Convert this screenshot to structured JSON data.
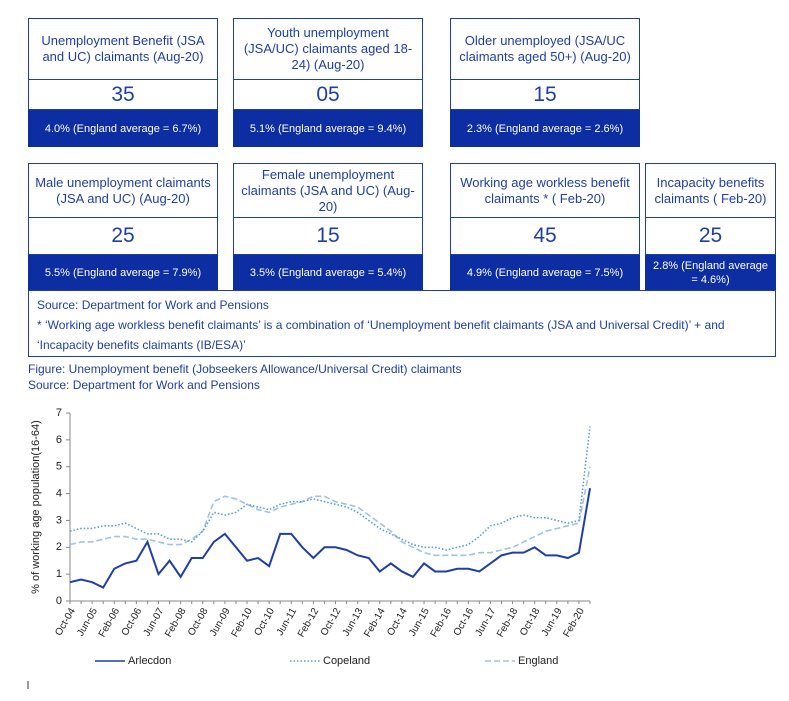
{
  "cards": [
    {
      "title": "Unemployment Benefit (JSA and UC) claimants (Aug-20)",
      "value": "35",
      "note": "4.0% (England average = 6.7%)"
    },
    {
      "title": "Youth unemployment (JSA/UC) claimants aged 18-24) (Aug-20)",
      "value": "05",
      "note": "5.1% (England average = 9.4%)"
    },
    {
      "title": "Older unemployed (JSA/UC claimants aged 50+) (Aug-20)",
      "value": "15",
      "note": "2.3% (England average = 2.6%)"
    },
    {
      "title": "Male unemployment claimants (JSA and UC) (Aug-20)",
      "value": "25",
      "note": "5.5% (England average = 7.9%)"
    },
    {
      "title": "Female unemployment claimants (JSA and UC) (Aug-20)",
      "value": "15",
      "note": "3.5% (England average = 5.4%)"
    },
    {
      "title": "Working age workless benefit claimants * ( Feb-20)",
      "value": "45",
      "note": "4.9% (England average = 7.5%)"
    },
    {
      "title": "Incapacity benefits claimants ( Feb-20)",
      "value": "25",
      "note": "2.8% (England average = 4.6%)"
    }
  ],
  "source_box": {
    "source": "Source: Department for Work and Pensions",
    "footnote": "*  ‘Working age workless benefit claimants’  is a combination of  ‘Unemployment benefit claimants (JSA and Universal Credit)’ + and  ‘Incapacity benefits claimants (IB/ESA)’"
  },
  "figure": {
    "caption": "Figure:  Unemployment benefit (Jobseekers Allowance/Universal Credit) claimants",
    "source": "Source:  Department for Work and Pensions"
  },
  "chart_data": {
    "type": "line",
    "ylabel": "% of working age population(16-64)",
    "categories": [
      "Oct-04",
      null,
      "Jun-05",
      null,
      "Feb-06",
      null,
      "Oct-06",
      null,
      "Jun-07",
      null,
      "Feb-08",
      null,
      "Oct-08",
      null,
      "Jun-09",
      null,
      "Feb-10",
      null,
      "Oct-10",
      null,
      "Jun-11",
      null,
      "Feb-12",
      null,
      "Oct-12",
      null,
      "Jun-13",
      null,
      "Feb-14",
      null,
      "Oct-14",
      null,
      "Jun-15",
      null,
      "Feb-16",
      null,
      "Oct-16",
      null,
      "Jun-17",
      null,
      "Feb-18",
      null,
      "Oct-18",
      null,
      "Jun-19",
      null,
      "Feb-20",
      null
    ],
    "series": [
      {
        "name": "Arlecdon",
        "color": "#1f3fa6",
        "dash": "solid",
        "values": [
          0.7,
          0.8,
          0.7,
          0.5,
          1.2,
          1.4,
          1.5,
          2.2,
          1.0,
          1.5,
          0.9,
          1.6,
          1.6,
          2.2,
          2.5,
          2.0,
          1.5,
          1.6,
          1.3,
          2.5,
          2.5,
          2.0,
          1.6,
          2.0,
          2.0,
          1.9,
          1.7,
          1.6,
          1.1,
          1.4,
          1.1,
          0.9,
          1.4,
          1.1,
          1.1,
          1.2,
          1.2,
          1.1,
          1.4,
          1.7,
          1.8,
          1.8,
          2.0,
          1.7,
          1.7,
          1.6,
          1.8,
          4.2
        ]
      },
      {
        "name": "Copeland",
        "color": "#5b9bd5",
        "dash": "dotted",
        "values": [
          2.6,
          2.7,
          2.7,
          2.8,
          2.8,
          2.9,
          2.7,
          2.5,
          2.5,
          2.3,
          2.3,
          2.2,
          2.6,
          3.3,
          3.2,
          3.3,
          3.6,
          3.5,
          3.4,
          3.6,
          3.7,
          3.7,
          3.8,
          3.7,
          3.6,
          3.5,
          3.3,
          3.0,
          2.7,
          2.5,
          2.3,
          2.1,
          2.0,
          2.0,
          1.9,
          2.0,
          2.1,
          2.4,
          2.8,
          2.9,
          3.1,
          3.2,
          3.1,
          3.1,
          3.0,
          2.9,
          3.0,
          6.5
        ]
      },
      {
        "name": "England",
        "color": "#9dc3e6",
        "dash": "dashed",
        "values": [
          2.1,
          2.2,
          2.2,
          2.3,
          2.4,
          2.4,
          2.3,
          2.3,
          2.2,
          2.1,
          2.1,
          2.3,
          2.6,
          3.7,
          3.9,
          3.8,
          3.6,
          3.4,
          3.3,
          3.5,
          3.6,
          3.7,
          3.9,
          3.9,
          3.7,
          3.6,
          3.5,
          3.2,
          2.9,
          2.6,
          2.2,
          2.0,
          1.8,
          1.7,
          1.7,
          1.7,
          1.7,
          1.8,
          1.8,
          1.9,
          2.0,
          2.2,
          2.4,
          2.6,
          2.7,
          2.8,
          2.9,
          5.0
        ]
      }
    ],
    "ylim": [
      0,
      7
    ],
    "yticks": [
      0,
      1,
      2,
      3,
      4,
      5,
      6,
      7
    ],
    "legend": "bottom"
  }
}
